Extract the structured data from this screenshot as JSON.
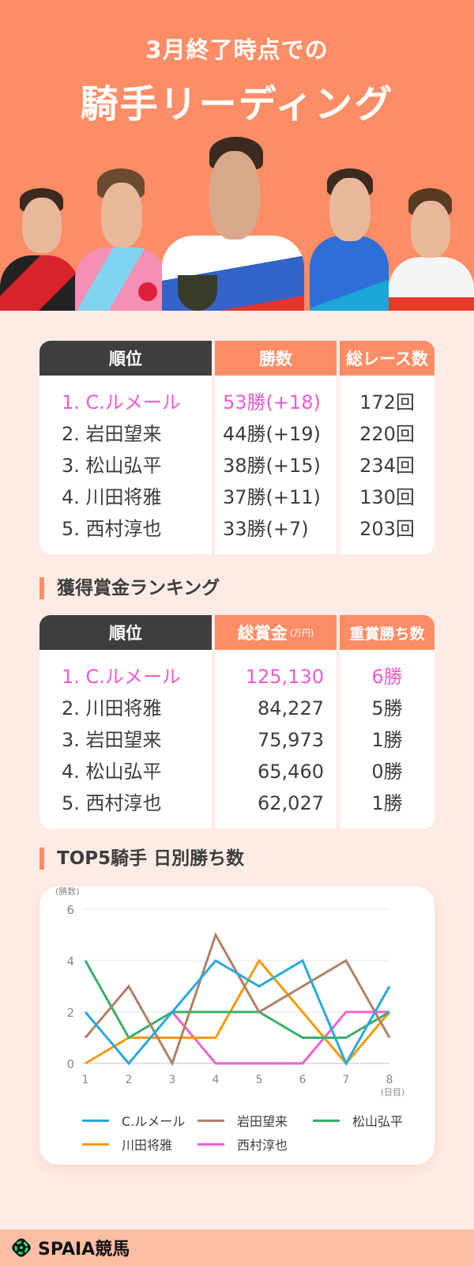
{
  "hero": {
    "subtitle": "3月終了時点での",
    "title": "騎手リーディング",
    "photos": [
      "jockey-1",
      "jockey-2",
      "jockey-3",
      "jockey-4",
      "jockey-5"
    ]
  },
  "wins_table": {
    "headers": [
      "順位",
      "勝数",
      "総レース数"
    ],
    "rows": [
      {
        "rank": "1. C.ルメール",
        "wins": "53勝(+18)",
        "races": "172回",
        "highlight": true
      },
      {
        "rank": "2. 岩田望来",
        "wins": "44勝(+19)",
        "races": "220回"
      },
      {
        "rank": "3. 松山弘平",
        "wins": "38勝(+15)",
        "races": "234回"
      },
      {
        "rank": "4. 川田将雅",
        "wins": "37勝(+11)",
        "races": "130回"
      },
      {
        "rank": "5. 西村淳也",
        "wins": "33勝(+7)",
        "races": "203回"
      }
    ]
  },
  "prize_section": {
    "title": "獲得賞金ランキング",
    "headers": [
      "順位",
      "総賞金",
      "(万円)",
      "重賞勝ち数"
    ],
    "rows": [
      {
        "rank": "1. C.ルメール",
        "prize": "125,130",
        "graded": "6勝",
        "highlight": true
      },
      {
        "rank": "2. 川田将雅",
        "prize": "84,227",
        "graded": "5勝"
      },
      {
        "rank": "3. 岩田望来",
        "prize": "75,973",
        "graded": "1勝"
      },
      {
        "rank": "4. 松山弘平",
        "prize": "65,460",
        "graded": "0勝"
      },
      {
        "rank": "5. 西村淳也",
        "prize": "62,027",
        "graded": "1勝"
      }
    ]
  },
  "chart_section": {
    "title": "TOP5騎手 日別勝ち数"
  },
  "chart_data": {
    "type": "line",
    "title": "TOP5騎手 日別勝ち数",
    "xlabel": "(日目)",
    "ylabel": "(勝数)",
    "x": [
      1,
      2,
      3,
      4,
      5,
      6,
      7,
      8
    ],
    "yticks": [
      0,
      2,
      4,
      6
    ],
    "ylim": [
      0,
      6
    ],
    "grid": true,
    "legend_position": "bottom",
    "series": [
      {
        "name": "C.ルメール",
        "color": "#29a8e0",
        "values": [
          2,
          0,
          2,
          4,
          3,
          4,
          0,
          3
        ]
      },
      {
        "name": "岩田望来",
        "color": "#b0806a",
        "values": [
          1,
          3,
          0,
          5,
          2,
          3,
          4,
          1
        ]
      },
      {
        "name": "松山弘平",
        "color": "#3aae6a",
        "values": [
          4,
          1,
          2,
          2,
          2,
          1,
          1,
          2
        ]
      },
      {
        "name": "川田将雅",
        "color": "#f59a0c",
        "values": [
          0,
          1,
          1,
          1,
          4,
          2,
          0,
          2
        ]
      },
      {
        "name": "西村淳也",
        "color": "#f25fd2",
        "values": [
          null,
          null,
          2,
          0,
          0,
          0,
          2,
          2
        ]
      }
    ]
  },
  "footer": {
    "logo_text": "SPAIA競馬"
  }
}
